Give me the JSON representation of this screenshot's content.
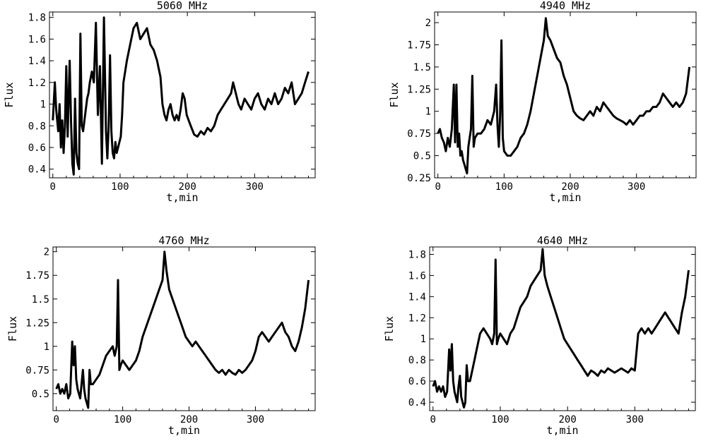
{
  "chart_data": [
    {
      "type": "line",
      "title": "5060 MHz",
      "xlabel": "t,min",
      "ylabel": "Flux",
      "xlim": [
        -5,
        390
      ],
      "ylim": [
        0.32,
        1.85
      ],
      "xticks": [
        0,
        100,
        200,
        300
      ],
      "yticks": [
        0.4,
        0.6,
        0.8,
        1,
        1.2,
        1.4,
        1.6,
        1.8
      ],
      "ytick_labels": [
        "0.4",
        "0.6",
        "0.8",
        "1",
        "1.2",
        "1.4",
        "1.6",
        "1.8"
      ],
      "series": [
        {
          "x": [
            0,
            3,
            5,
            8,
            10,
            12,
            14,
            16,
            18,
            20,
            22,
            25,
            27,
            29,
            31,
            33,
            35,
            37,
            39,
            41,
            43,
            45,
            47,
            49,
            51,
            53,
            55,
            58,
            61,
            64,
            67,
            70,
            73,
            76,
            79,
            81,
            83,
            85,
            87,
            89,
            91,
            93,
            95,
            97,
            99,
            101,
            103,
            105,
            110,
            115,
            120,
            125,
            130,
            135,
            140,
            145,
            150,
            155,
            160,
            163,
            166,
            169,
            172,
            175,
            178,
            181,
            184,
            187,
            190,
            193,
            196,
            199,
            202,
            205,
            210,
            215,
            220,
            225,
            230,
            235,
            240,
            245,
            250,
            255,
            260,
            265,
            268,
            272,
            276,
            280,
            285,
            290,
            295,
            300,
            305,
            310,
            315,
            320,
            325,
            330,
            335,
            340,
            345,
            350,
            355,
            360,
            365,
            370,
            375,
            380
          ],
          "values": [
            0.85,
            1.2,
            0.95,
            0.75,
            1.0,
            0.6,
            0.85,
            0.55,
            0.8,
            1.35,
            0.7,
            1.4,
            0.85,
            0.45,
            0.35,
            1.05,
            0.55,
            0.45,
            0.4,
            1.65,
            0.8,
            0.75,
            0.85,
            0.95,
            1.05,
            1.1,
            1.2,
            1.3,
            1.2,
            1.75,
            0.9,
            1.35,
            0.45,
            1.8,
            0.75,
            0.5,
            0.8,
            1.45,
            0.75,
            0.55,
            0.5,
            0.65,
            0.55,
            0.6,
            0.65,
            0.7,
            0.9,
            1.2,
            1.4,
            1.55,
            1.7,
            1.75,
            1.6,
            1.65,
            1.7,
            1.55,
            1.5,
            1.4,
            1.25,
            1.0,
            0.9,
            0.85,
            0.95,
            1.0,
            0.9,
            0.85,
            0.9,
            0.85,
            0.95,
            1.1,
            1.05,
            0.9,
            0.85,
            0.8,
            0.72,
            0.7,
            0.75,
            0.72,
            0.78,
            0.75,
            0.8,
            0.9,
            0.95,
            1.0,
            1.05,
            1.1,
            1.2,
            1.1,
            1.0,
            0.95,
            1.05,
            1.0,
            0.95,
            1.05,
            1.1,
            1.0,
            0.95,
            1.05,
            1.0,
            1.1,
            1.0,
            1.05,
            1.15,
            1.1,
            1.2,
            1.0,
            1.05,
            1.1,
            1.2,
            1.3
          ]
        }
      ]
    },
    {
      "type": "line",
      "title": "4940 MHz",
      "xlabel": "t,min",
      "ylabel": "Flux",
      "xlim": [
        -5,
        390
      ],
      "ylim": [
        0.25,
        2.12
      ],
      "xticks": [
        0,
        100,
        200,
        300
      ],
      "yticks": [
        0.25,
        0.5,
        0.75,
        1,
        1.25,
        1.5,
        1.75,
        2
      ],
      "ytick_labels": [
        "0.25",
        "0.5",
        "0.75",
        "1",
        "1.25",
        "1.5",
        "1.75",
        "2"
      ],
      "series": [
        {
          "x": [
            0,
            3,
            6,
            9,
            12,
            15,
            18,
            21,
            24,
            26,
            28,
            30,
            32,
            34,
            36,
            38,
            40,
            42,
            44,
            46,
            48,
            50,
            52,
            54,
            56,
            60,
            65,
            70,
            75,
            80,
            85,
            88,
            90,
            92,
            94,
            96,
            98,
            100,
            105,
            110,
            115,
            120,
            125,
            130,
            135,
            140,
            145,
            150,
            155,
            160,
            163,
            166,
            170,
            175,
            180,
            185,
            190,
            195,
            200,
            205,
            210,
            215,
            220,
            225,
            230,
            235,
            240,
            245,
            250,
            255,
            260,
            265,
            270,
            275,
            280,
            285,
            290,
            295,
            300,
            305,
            310,
            315,
            320,
            325,
            330,
            335,
            340,
            345,
            350,
            355,
            360,
            365,
            370,
            375,
            380
          ],
          "values": [
            0.75,
            0.8,
            0.7,
            0.65,
            0.55,
            0.7,
            0.6,
            0.8,
            1.3,
            0.65,
            1.3,
            0.6,
            0.75,
            0.5,
            0.55,
            0.45,
            0.4,
            0.35,
            0.3,
            0.6,
            0.7,
            0.8,
            1.4,
            0.6,
            0.7,
            0.75,
            0.75,
            0.8,
            0.9,
            0.85,
            1.0,
            1.3,
            0.85,
            0.6,
            0.95,
            1.8,
            0.7,
            0.55,
            0.5,
            0.5,
            0.55,
            0.6,
            0.7,
            0.75,
            0.85,
            1.0,
            1.2,
            1.4,
            1.6,
            1.8,
            2.05,
            1.85,
            1.8,
            1.7,
            1.6,
            1.55,
            1.4,
            1.3,
            1.15,
            1.0,
            0.95,
            0.92,
            0.9,
            0.95,
            1.0,
            0.95,
            1.05,
            1.0,
            1.1,
            1.05,
            1.0,
            0.95,
            0.92,
            0.9,
            0.88,
            0.85,
            0.9,
            0.85,
            0.9,
            0.95,
            0.95,
            1.0,
            1.0,
            1.05,
            1.05,
            1.1,
            1.2,
            1.15,
            1.1,
            1.05,
            1.1,
            1.05,
            1.1,
            1.2,
            1.5
          ]
        }
      ]
    },
    {
      "type": "line",
      "title": "4760 MHz",
      "xlabel": "t,min",
      "ylabel": "Flux",
      "xlim": [
        -5,
        390
      ],
      "ylim": [
        0.32,
        2.05
      ],
      "xticks": [
        0,
        100,
        200,
        300
      ],
      "yticks": [
        0.5,
        0.75,
        1,
        1.25,
        1.5,
        1.75,
        2
      ],
      "ytick_labels": [
        "0.5",
        "0.75",
        "1",
        "1.25",
        "1.5",
        "1.75",
        "2"
      ],
      "series": [
        {
          "x": [
            0,
            3,
            6,
            9,
            12,
            15,
            18,
            21,
            24,
            26,
            28,
            30,
            32,
            34,
            36,
            38,
            40,
            42,
            44,
            46,
            48,
            50,
            52,
            55,
            60,
            65,
            70,
            75,
            80,
            85,
            88,
            91,
            93,
            95,
            97,
            100,
            105,
            110,
            115,
            120,
            125,
            130,
            135,
            140,
            145,
            150,
            155,
            160,
            163,
            166,
            170,
            175,
            180,
            185,
            190,
            195,
            200,
            205,
            210,
            215,
            220,
            225,
            230,
            235,
            240,
            245,
            250,
            255,
            260,
            265,
            270,
            275,
            280,
            285,
            290,
            295,
            300,
            305,
            310,
            315,
            320,
            325,
            330,
            335,
            340,
            345,
            350,
            355,
            360,
            365,
            370,
            375,
            380
          ],
          "values": [
            0.55,
            0.6,
            0.5,
            0.55,
            0.5,
            0.6,
            0.45,
            0.5,
            1.05,
            0.8,
            1.0,
            0.65,
            0.55,
            0.5,
            0.45,
            0.6,
            0.75,
            0.55,
            0.45,
            0.4,
            0.35,
            0.75,
            0.6,
            0.6,
            0.65,
            0.7,
            0.8,
            0.9,
            0.95,
            1.0,
            0.9,
            1.0,
            1.7,
            0.75,
            0.8,
            0.85,
            0.8,
            0.75,
            0.8,
            0.85,
            0.95,
            1.1,
            1.2,
            1.3,
            1.4,
            1.5,
            1.6,
            1.7,
            2.0,
            1.8,
            1.6,
            1.5,
            1.4,
            1.3,
            1.2,
            1.1,
            1.05,
            1.0,
            1.05,
            1.0,
            0.95,
            0.9,
            0.85,
            0.8,
            0.75,
            0.72,
            0.75,
            0.7,
            0.75,
            0.72,
            0.7,
            0.75,
            0.72,
            0.75,
            0.8,
            0.85,
            0.95,
            1.1,
            1.15,
            1.1,
            1.05,
            1.1,
            1.15,
            1.2,
            1.25,
            1.15,
            1.1,
            1.0,
            0.95,
            1.05,
            1.2,
            1.4,
            1.7
          ]
        }
      ]
    },
    {
      "type": "line",
      "title": "4640 MHz",
      "xlabel": "t,min",
      "ylabel": "Flux",
      "xlim": [
        -5,
        390
      ],
      "ylim": [
        0.32,
        1.87
      ],
      "xticks": [
        0,
        100,
        200,
        300
      ],
      "yticks": [
        0.4,
        0.6,
        0.8,
        1,
        1.2,
        1.4,
        1.6,
        1.8
      ],
      "ytick_labels": [
        "0.4",
        "0.6",
        "0.8",
        "1",
        "1.2",
        "1.4",
        "1.6",
        "1.8"
      ],
      "series": [
        {
          "x": [
            0,
            3,
            6,
            9,
            12,
            15,
            18,
            21,
            24,
            26,
            28,
            30,
            32,
            34,
            36,
            38,
            40,
            42,
            44,
            46,
            48,
            50,
            52,
            55,
            60,
            65,
            70,
            75,
            80,
            85,
            88,
            91,
            93,
            95,
            97,
            100,
            105,
            110,
            115,
            120,
            125,
            130,
            135,
            140,
            145,
            150,
            155,
            160,
            163,
            166,
            170,
            175,
            180,
            185,
            190,
            195,
            200,
            205,
            210,
            215,
            220,
            225,
            230,
            235,
            240,
            245,
            250,
            255,
            260,
            265,
            270,
            275,
            280,
            285,
            290,
            295,
            300,
            305,
            310,
            315,
            320,
            325,
            330,
            335,
            340,
            345,
            350,
            355,
            360,
            365,
            370,
            375,
            380
          ],
          "values": [
            0.55,
            0.6,
            0.5,
            0.55,
            0.5,
            0.55,
            0.45,
            0.5,
            0.9,
            0.7,
            0.95,
            0.6,
            0.5,
            0.45,
            0.4,
            0.55,
            0.65,
            0.45,
            0.4,
            0.35,
            0.4,
            0.75,
            0.6,
            0.6,
            0.75,
            0.9,
            1.05,
            1.1,
            1.05,
            1.0,
            0.95,
            1.05,
            1.75,
            0.95,
            1.0,
            1.05,
            1.0,
            0.95,
            1.05,
            1.1,
            1.2,
            1.3,
            1.35,
            1.4,
            1.5,
            1.55,
            1.6,
            1.65,
            1.85,
            1.6,
            1.5,
            1.4,
            1.3,
            1.2,
            1.1,
            1.0,
            0.95,
            0.9,
            0.85,
            0.8,
            0.75,
            0.7,
            0.65,
            0.7,
            0.68,
            0.65,
            0.7,
            0.68,
            0.72,
            0.7,
            0.68,
            0.7,
            0.72,
            0.7,
            0.68,
            0.72,
            0.7,
            1.05,
            1.1,
            1.05,
            1.1,
            1.05,
            1.1,
            1.15,
            1.2,
            1.25,
            1.2,
            1.15,
            1.1,
            1.05,
            1.25,
            1.4,
            1.65
          ]
        }
      ]
    }
  ]
}
